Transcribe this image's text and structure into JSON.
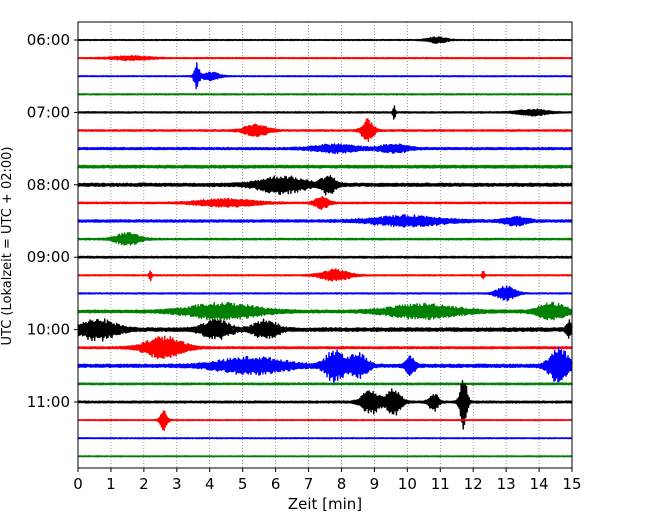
{
  "chart_data": {
    "type": "line",
    "xlabel": "Zeit  [min]",
    "ylabel": "UTC (Lokalzeit = UTC + 02:00)",
    "xlim": [
      0,
      15
    ],
    "x_ticks": [
      0,
      1,
      2,
      3,
      4,
      5,
      6,
      7,
      8,
      9,
      10,
      11,
      12,
      13,
      14,
      15
    ],
    "x_grid": true,
    "y_ticks": [
      {
        "row": 0,
        "label": "06:00"
      },
      {
        "row": 4,
        "label": "07:00"
      },
      {
        "row": 8,
        "label": "08:00"
      },
      {
        "row": 12,
        "label": "09:00"
      },
      {
        "row": 16,
        "label": "10:00"
      },
      {
        "row": 20,
        "label": "11:00"
      }
    ],
    "row_interval_minutes": 15,
    "colors_cycle": [
      "#000000",
      "#ff0000",
      "#0000ff",
      "#008000"
    ],
    "traces": [
      {
        "start": "06:00",
        "baseline": 0.5,
        "events": [
          {
            "t": 10.9,
            "amp": 3,
            "width": 0.4
          }
        ]
      },
      {
        "start": "06:15",
        "baseline": 0.6,
        "events": [
          {
            "t": 1.6,
            "amp": 2,
            "width": 0.8
          }
        ]
      },
      {
        "start": "06:30",
        "baseline": 0.5,
        "events": [
          {
            "t": 3.6,
            "amp": 14,
            "width": 0.1
          },
          {
            "t": 4.0,
            "amp": 4,
            "width": 0.4
          }
        ]
      },
      {
        "start": "06:45",
        "baseline": 0.6,
        "events": []
      },
      {
        "start": "07:00",
        "baseline": 0.7,
        "events": [
          {
            "t": 9.6,
            "amp": 10,
            "width": 0.05
          },
          {
            "t": 13.8,
            "amp": 3,
            "width": 0.6
          }
        ]
      },
      {
        "start": "07:15",
        "baseline": 0.8,
        "events": [
          {
            "t": 5.4,
            "amp": 6,
            "width": 0.5
          },
          {
            "t": 8.8,
            "amp": 11,
            "width": 0.25
          }
        ]
      },
      {
        "start": "07:30",
        "baseline": 1.1,
        "events": [
          {
            "t": 7.8,
            "amp": 4,
            "width": 0.9
          },
          {
            "t": 9.6,
            "amp": 4,
            "width": 0.6
          }
        ]
      },
      {
        "start": "07:45",
        "baseline": 1.4,
        "events": []
      },
      {
        "start": "08:00",
        "baseline": 1.6,
        "events": [
          {
            "t": 6.2,
            "amp": 8,
            "width": 1.0
          },
          {
            "t": 7.6,
            "amp": 9,
            "width": 0.3
          }
        ]
      },
      {
        "start": "08:15",
        "baseline": 0.8,
        "events": [
          {
            "t": 4.5,
            "amp": 4,
            "width": 1.2
          },
          {
            "t": 7.4,
            "amp": 6,
            "width": 0.3
          }
        ]
      },
      {
        "start": "08:30",
        "baseline": 1.2,
        "events": [
          {
            "t": 10.0,
            "amp": 5,
            "width": 1.5
          },
          {
            "t": 13.3,
            "amp": 4,
            "width": 0.5
          }
        ]
      },
      {
        "start": "08:45",
        "baseline": 0.8,
        "events": [
          {
            "t": 1.5,
            "amp": 6,
            "width": 0.5
          }
        ]
      },
      {
        "start": "09:00",
        "baseline": 0.9,
        "events": []
      },
      {
        "start": "09:15",
        "baseline": 0.6,
        "events": [
          {
            "t": 2.2,
            "amp": 6,
            "width": 0.05
          },
          {
            "t": 7.8,
            "amp": 6,
            "width": 0.6
          },
          {
            "t": 12.3,
            "amp": 5,
            "width": 0.05
          }
        ]
      },
      {
        "start": "09:30",
        "baseline": 0.6,
        "events": [
          {
            "t": 13.0,
            "amp": 7,
            "width": 0.4
          }
        ]
      },
      {
        "start": "09:45",
        "baseline": 1.4,
        "events": [
          {
            "t": 4.4,
            "amp": 8,
            "width": 1.5
          },
          {
            "t": 10.5,
            "amp": 7,
            "width": 1.5
          },
          {
            "t": 14.4,
            "amp": 8,
            "width": 0.6
          }
        ]
      },
      {
        "start": "10:00",
        "baseline": 1.8,
        "events": [
          {
            "t": 0.6,
            "amp": 10,
            "width": 0.8
          },
          {
            "t": 4.2,
            "amp": 9,
            "width": 0.6
          },
          {
            "t": 5.7,
            "amp": 9,
            "width": 0.5
          },
          {
            "t": 14.9,
            "amp": 9,
            "width": 0.1
          }
        ]
      },
      {
        "start": "10:15",
        "baseline": 1.0,
        "events": [
          {
            "t": 2.6,
            "amp": 11,
            "width": 0.8
          }
        ]
      },
      {
        "start": "10:30",
        "baseline": 1.6,
        "events": [
          {
            "t": 5.3,
            "amp": 8,
            "width": 1.5
          },
          {
            "t": 7.8,
            "amp": 16,
            "width": 0.4
          },
          {
            "t": 8.5,
            "amp": 12,
            "width": 0.4
          },
          {
            "t": 10.1,
            "amp": 9,
            "width": 0.2
          },
          {
            "t": 14.6,
            "amp": 18,
            "width": 0.4
          }
        ]
      },
      {
        "start": "10:45",
        "baseline": 0.9,
        "events": []
      },
      {
        "start": "11:00",
        "baseline": 1.0,
        "events": [
          {
            "t": 8.9,
            "amp": 12,
            "width": 0.4
          },
          {
            "t": 9.6,
            "amp": 13,
            "width": 0.3
          },
          {
            "t": 10.8,
            "amp": 9,
            "width": 0.2
          },
          {
            "t": 11.7,
            "amp": 28,
            "width": 0.15
          }
        ]
      },
      {
        "start": "11:15",
        "baseline": 0.5,
        "events": [
          {
            "t": 2.6,
            "amp": 10,
            "width": 0.15
          }
        ]
      },
      {
        "start": "11:30",
        "baseline": 0.5,
        "events": []
      },
      {
        "start": "11:45",
        "baseline": 0.5,
        "events": []
      }
    ]
  }
}
